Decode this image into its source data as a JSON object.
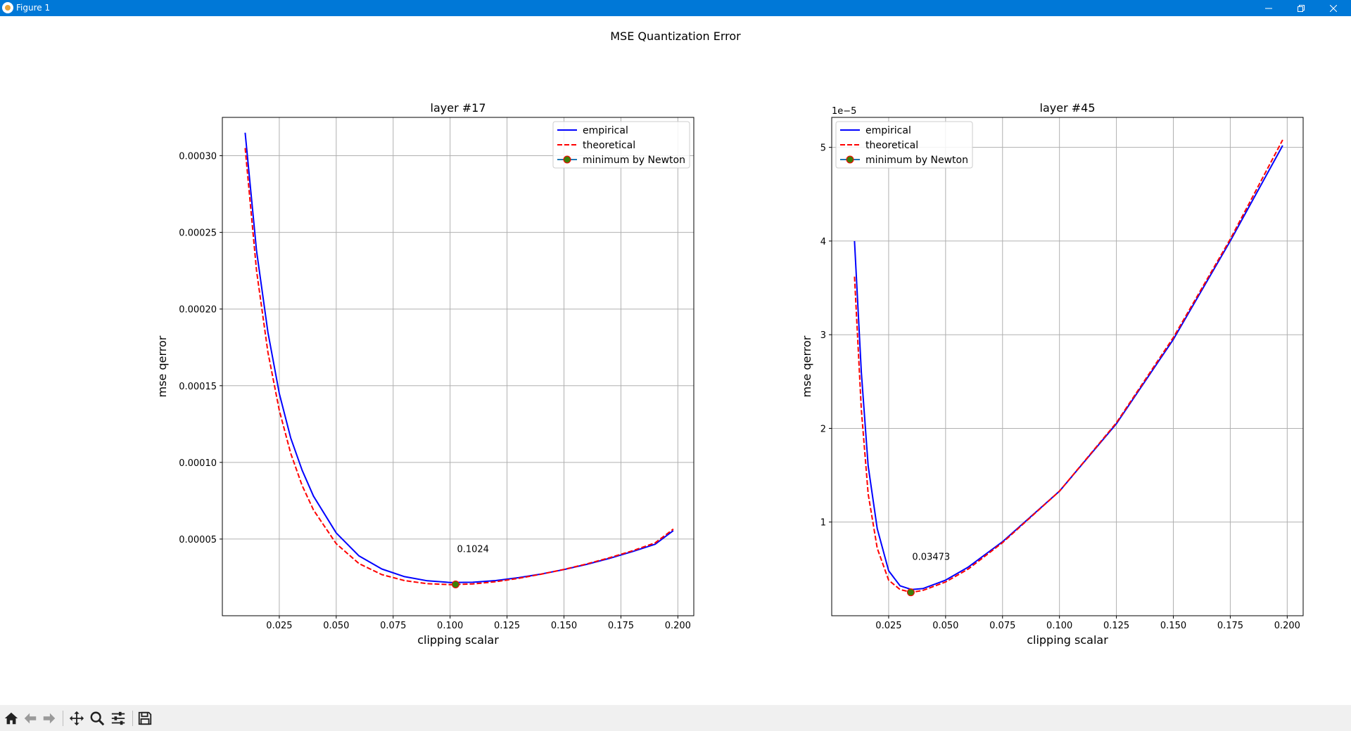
{
  "window": {
    "title": "Figure 1",
    "minimize_icon": "minimize-icon",
    "maximize_icon": "restore-icon",
    "close_icon": "close-icon"
  },
  "figure": {
    "suptitle": "MSE Quantization Error"
  },
  "toolbar": {
    "icons": [
      "home-icon",
      "back-icon",
      "forward-icon",
      "pan-icon",
      "zoom-icon",
      "configure-subplots-icon",
      "save-icon"
    ]
  },
  "colors": {
    "empirical": "#0000ff",
    "theoretical": "#ff0000",
    "marker_face": "#3d7f07",
    "marker_edge": "#ff0000",
    "grid": "#b0b0b0",
    "titlebar": "#0078d7"
  },
  "chart_data": [
    {
      "type": "line",
      "title": "layer #17",
      "xlabel": "clipping scalar",
      "ylabel": "mse qerror",
      "xlim": [
        0.0,
        0.207
      ],
      "ylim": [
        0.0,
        0.000325
      ],
      "xticks": [
        0.025,
        0.05,
        0.075,
        0.1,
        0.125,
        0.15,
        0.175,
        0.2
      ],
      "xtick_labels": [
        "0.025",
        "0.050",
        "0.075",
        "0.100",
        "0.125",
        "0.150",
        "0.175",
        "0.200"
      ],
      "yticks": [
        5e-05,
        0.0001,
        0.00015,
        0.0002,
        0.00025,
        0.0003
      ],
      "ytick_labels": [
        "0.00005",
        "0.00010",
        "0.00015",
        "0.00020",
        "0.00025",
        "0.00030"
      ],
      "offset_text": "",
      "grid": true,
      "legend_position": "top-right",
      "series": [
        {
          "name": "empirical",
          "style": "solid",
          "x": [
            0.01,
            0.015,
            0.02,
            0.025,
            0.03,
            0.035,
            0.04,
            0.05,
            0.06,
            0.07,
            0.08,
            0.09,
            0.1,
            0.11,
            0.12,
            0.13,
            0.14,
            0.15,
            0.16,
            0.17,
            0.18,
            0.19,
            0.198
          ],
          "y": [
            0.000315,
            0.000238,
            0.000185,
            0.000145,
            0.000116,
            9.5e-05,
            7.8e-05,
            5.4e-05,
            3.9e-05,
            3.05e-05,
            2.55e-05,
            2.28e-05,
            2.17e-05,
            2.18e-05,
            2.29e-05,
            2.48e-05,
            2.72e-05,
            3.01e-05,
            3.35e-05,
            3.74e-05,
            4.18e-05,
            4.66e-05,
            5.55e-05
          ]
        },
        {
          "name": "theoretical",
          "style": "dashed",
          "x": [
            0.01,
            0.015,
            0.02,
            0.025,
            0.03,
            0.035,
            0.04,
            0.05,
            0.06,
            0.07,
            0.08,
            0.09,
            0.1,
            0.11,
            0.12,
            0.13,
            0.14,
            0.15,
            0.16,
            0.17,
            0.18,
            0.19,
            0.198
          ],
          "y": [
            0.000305,
            0.000225,
            0.000172,
            0.000134,
            0.000106,
            8.5e-05,
            6.9e-05,
            4.7e-05,
            3.4e-05,
            2.68e-05,
            2.29e-05,
            2.09e-05,
            2.03e-05,
            2.07e-05,
            2.22e-05,
            2.44e-05,
            2.71e-05,
            3.02e-05,
            3.38e-05,
            3.78e-05,
            4.23e-05,
            4.75e-05,
            5.65e-05
          ]
        }
      ],
      "minimum": {
        "name": "minimum by Newton",
        "x": 0.1024,
        "y": 2.04e-05,
        "label": "0.1024"
      }
    },
    {
      "type": "line",
      "title": "layer #45",
      "xlabel": "clipping scalar",
      "ylabel": "mse qerror",
      "xlim": [
        0.0,
        0.207
      ],
      "ylim": [
        0.0,
        5.32e-05
      ],
      "xticks": [
        0.025,
        0.05,
        0.075,
        0.1,
        0.125,
        0.15,
        0.175,
        0.2
      ],
      "xtick_labels": [
        "0.025",
        "0.050",
        "0.075",
        "0.100",
        "0.125",
        "0.150",
        "0.175",
        "0.200"
      ],
      "yticks": [
        1e-05,
        2e-05,
        3e-05,
        4e-05,
        5e-05
      ],
      "ytick_labels": [
        "1",
        "2",
        "3",
        "4",
        "5"
      ],
      "offset_text": "1e−5",
      "grid": true,
      "legend_position": "top-left",
      "series": [
        {
          "name": "empirical",
          "style": "solid",
          "x": [
            0.01,
            0.013,
            0.016,
            0.02,
            0.025,
            0.03,
            0.035,
            0.04,
            0.05,
            0.06,
            0.075,
            0.1,
            0.125,
            0.15,
            0.175,
            0.198
          ],
          "y": [
            4e-05,
            2.6e-05,
            1.6e-05,
            9.3e-06,
            4.8e-06,
            3.2e-06,
            2.8e-06,
            2.9e-06,
            3.8e-06,
            5.2e-06,
            7.9e-06,
            1.33e-05,
            2.05e-05,
            2.95e-05,
            4e-05,
            5.02e-05
          ]
        },
        {
          "name": "theoretical",
          "style": "dashed",
          "x": [
            0.01,
            0.013,
            0.016,
            0.02,
            0.025,
            0.03,
            0.035,
            0.04,
            0.05,
            0.06,
            0.075,
            0.1,
            0.125,
            0.15,
            0.175,
            0.198
          ],
          "y": [
            3.62e-05,
            2.2e-05,
            1.3e-05,
            7.2e-06,
            3.8e-06,
            2.8e-06,
            2.5e-06,
            2.7e-06,
            3.6e-06,
            5e-06,
            7.8e-06,
            1.33e-05,
            2.06e-05,
            2.97e-05,
            4.02e-05,
            5.08e-05
          ]
        }
      ],
      "minimum": {
        "name": "minimum by Newton",
        "x": 0.03473,
        "y": 2.5e-06,
        "label": "0.03473"
      }
    }
  ]
}
